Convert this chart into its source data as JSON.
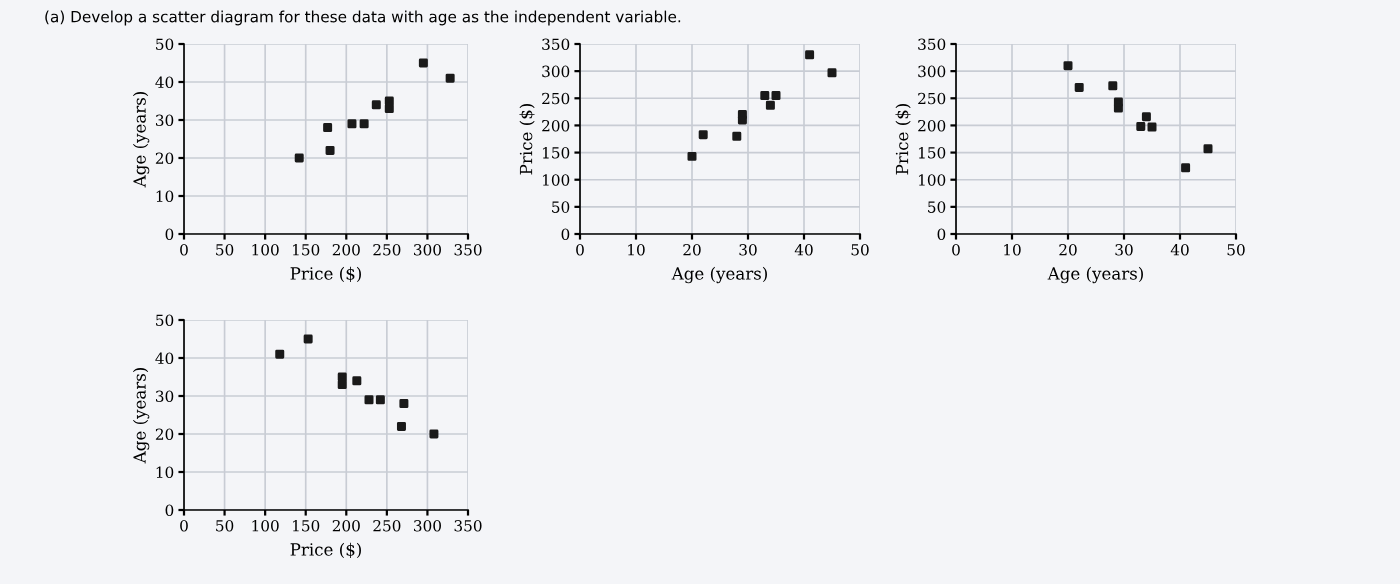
{
  "chart_data": [
    {
      "type": "scatter",
      "title": "(a) Develop a scatter diagram for these data with age as the independent variable.",
      "xlabel": "Price ($)",
      "ylabel": "Age (years)",
      "xlim": [
        0,
        350
      ],
      "ylim": [
        0,
        50
      ],
      "xticks": [
        0,
        50,
        100,
        150,
        200,
        250,
        300,
        350
      ],
      "yticks": [
        0,
        10,
        20,
        30,
        40,
        50
      ],
      "grid": true,
      "marker": "square",
      "series": [
        {
          "color": "#1a1a1a",
          "x": [
            142,
            177,
            180,
            207,
            222,
            237,
            253,
            253,
            295,
            328
          ],
          "values": [
            20,
            28,
            22,
            29,
            29,
            34,
            33,
            35,
            45,
            41
          ]
        }
      ]
    },
    {
      "type": "scatter",
      "xlabel": "Age (years)",
      "ylabel": "Price ($)",
      "xlim": [
        0,
        50
      ],
      "ylim": [
        0,
        350
      ],
      "xticks": [
        0,
        10,
        20,
        30,
        40,
        50
      ],
      "yticks": [
        0,
        50,
        100,
        150,
        200,
        250,
        300,
        350
      ],
      "grid": true,
      "marker": "square",
      "series": [
        {
          "color": "#1a1a1a",
          "x": [
            20,
            22,
            28,
            29,
            29,
            33,
            34,
            35,
            41,
            45
          ],
          "values": [
            143,
            183,
            180,
            210,
            220,
            255,
            237,
            255,
            330,
            297
          ]
        }
      ]
    },
    {
      "type": "scatter",
      "xlabel": "Age (years)",
      "ylabel": "Price ($)",
      "xlim": [
        0,
        50
      ],
      "ylim": [
        0,
        350
      ],
      "xticks": [
        0,
        10,
        20,
        30,
        40,
        50
      ],
      "yticks": [
        0,
        50,
        100,
        150,
        200,
        250,
        300,
        350
      ],
      "grid": true,
      "marker": "square",
      "series": [
        {
          "color": "#1a1a1a",
          "x": [
            20,
            22,
            28,
            29,
            29,
            33,
            34,
            35,
            41,
            45
          ],
          "values": [
            310,
            270,
            273,
            232,
            243,
            198,
            216,
            197,
            122,
            157
          ]
        }
      ]
    },
    {
      "type": "scatter",
      "xlabel": "Price ($)",
      "ylabel": "Age (years)",
      "xlim": [
        0,
        350
      ],
      "ylim": [
        0,
        50
      ],
      "xticks": [
        0,
        50,
        100,
        150,
        200,
        250,
        300,
        350
      ],
      "yticks": [
        0,
        10,
        20,
        30,
        40,
        50
      ],
      "grid": true,
      "marker": "square",
      "series": [
        {
          "color": "#1a1a1a",
          "x": [
            118,
            153,
            195,
            195,
            213,
            228,
            242,
            268,
            271,
            308
          ],
          "values": [
            41,
            45,
            35,
            33,
            34,
            29,
            29,
            22,
            28,
            20
          ]
        }
      ]
    }
  ]
}
